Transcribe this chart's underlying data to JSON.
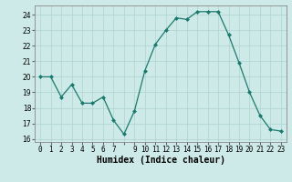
{
  "xlabel": "Humidex (Indice chaleur)",
  "ylabel": "",
  "hours": [
    0,
    1,
    2,
    3,
    4,
    5,
    6,
    7,
    8,
    9,
    10,
    11,
    12,
    13,
    14,
    15,
    16,
    17,
    18,
    19,
    20,
    21,
    22,
    23
  ],
  "values": [
    20.0,
    20.0,
    18.7,
    19.5,
    18.3,
    18.3,
    18.7,
    17.2,
    16.3,
    17.8,
    20.4,
    22.1,
    23.0,
    23.8,
    23.7,
    24.2,
    24.2,
    24.2,
    22.7,
    20.9,
    19.0,
    17.5,
    16.6,
    16.5
  ],
  "line_color": "#1a7a6e",
  "marker": "D",
  "marker_size": 2,
  "bg_color": "#ceeae8",
  "grid_color": "#aed4d0",
  "xlim": [
    -0.5,
    23.5
  ],
  "ylim": [
    15.8,
    24.6
  ],
  "yticks": [
    16,
    17,
    18,
    19,
    20,
    21,
    22,
    23,
    24
  ],
  "xtick_labels": [
    "0",
    "1",
    "2",
    "3",
    "4",
    "5",
    "6",
    "7",
    "",
    "9",
    "10",
    "11",
    "12",
    "13",
    "14",
    "15",
    "16",
    "17",
    "18",
    "19",
    "20",
    "21",
    "22",
    "23"
  ],
  "tick_fontsize": 5.5,
  "xlabel_fontsize": 7,
  "xlabel_fontweight": "bold"
}
